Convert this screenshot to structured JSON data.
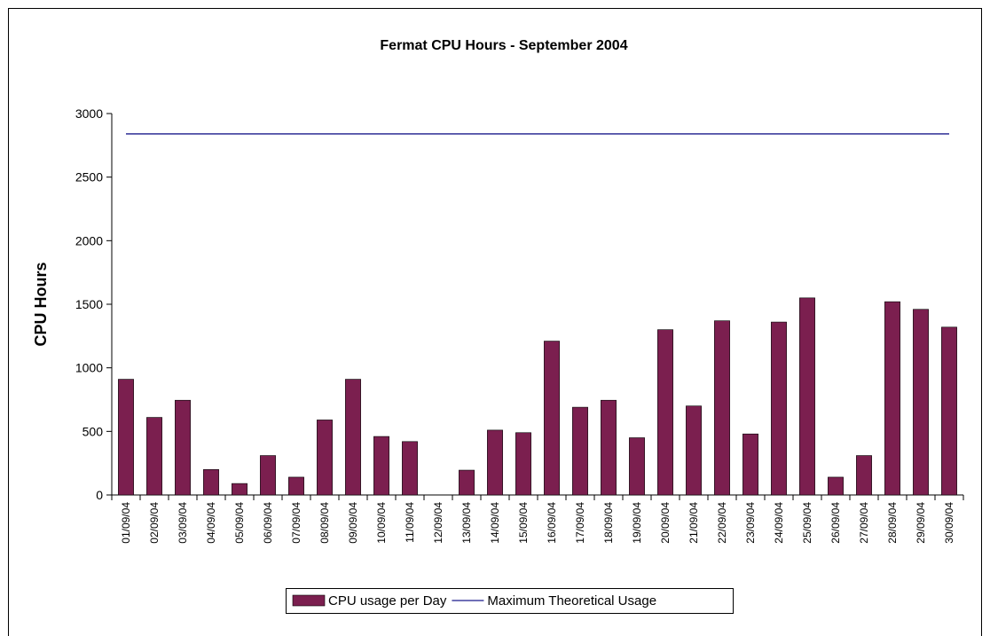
{
  "chart_data": {
    "type": "bar_line",
    "title": "Fermat CPU Hours - September  2004",
    "y_label": "CPU Hours",
    "categories": [
      "01/09/04",
      "02/09/04",
      "03/09/04",
      "04/09/04",
      "05/09/04",
      "06/09/04",
      "07/09/04",
      "08/09/04",
      "09/09/04",
      "10/09/04",
      "11/09/04",
      "12/09/04",
      "13/09/04",
      "14/09/04",
      "15/09/04",
      "16/09/04",
      "17/09/04",
      "18/09/04",
      "19/09/04",
      "20/09/04",
      "21/09/04",
      "22/09/04",
      "23/09/04",
      "24/09/04",
      "25/09/04",
      "26/09/04",
      "27/09/04",
      "28/09/04",
      "29/09/04",
      "30/09/04"
    ],
    "series": [
      {
        "name": "CPU usage per Day",
        "type": "bar",
        "color": "#7b1f4f",
        "values": [
          910,
          610,
          745,
          200,
          90,
          310,
          140,
          590,
          910,
          460,
          420,
          0,
          195,
          510,
          490,
          1210,
          690,
          745,
          450,
          1300,
          700,
          1370,
          480,
          1360,
          1550,
          140,
          310,
          1520,
          1460,
          1320
        ]
      },
      {
        "name": "Maximum Theoretical Usage",
        "type": "line",
        "color": "#1a1a8c",
        "values": [
          2840,
          2840,
          2840,
          2840,
          2840,
          2840,
          2840,
          2840,
          2840,
          2840,
          2840,
          2840,
          2840,
          2840,
          2840,
          2840,
          2840,
          2840,
          2840,
          2840,
          2840,
          2840,
          2840,
          2840,
          2840,
          2840,
          2840,
          2840,
          2840,
          2840
        ]
      }
    ],
    "ylim": [
      0,
      3000
    ],
    "yticks": [
      0,
      500,
      1000,
      1500,
      2000,
      2500,
      3000
    ],
    "grid": false,
    "legend": "bottom"
  }
}
